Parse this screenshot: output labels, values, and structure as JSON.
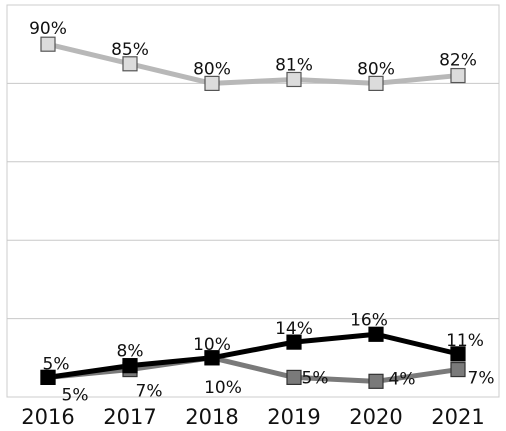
{
  "chart_data": {
    "type": "line",
    "x": [
      "2016",
      "2017",
      "2018",
      "2019",
      "2020",
      "2021"
    ],
    "ylim": [
      0,
      100
    ],
    "grid": true,
    "legend": "none",
    "series": [
      {
        "values": [
          90,
          85,
          80,
          81,
          80,
          82
        ],
        "labels": [
          "90%",
          "85%",
          "80%",
          "81%",
          "80%",
          "82%"
        ],
        "line_color": "#b8b8b8",
        "marker_fill": "#dcdcdc",
        "marker_stroke": "#555555"
      },
      {
        "values": [
          5,
          8,
          10,
          14,
          16,
          11
        ],
        "labels": [
          "5%",
          "8%",
          "10%",
          "14%",
          "16%",
          "11%"
        ],
        "line_color": "#000000",
        "marker_fill": "#000000",
        "marker_stroke": "#000000"
      },
      {
        "values": [
          5,
          7,
          10,
          5,
          4,
          7
        ],
        "labels": [
          "5%",
          "7%",
          "10%",
          "5%",
          "4%",
          "7%"
        ],
        "line_color": "#7a7a7a",
        "marker_fill": "#7a7a7a",
        "marker_stroke": "#333333"
      }
    ]
  }
}
